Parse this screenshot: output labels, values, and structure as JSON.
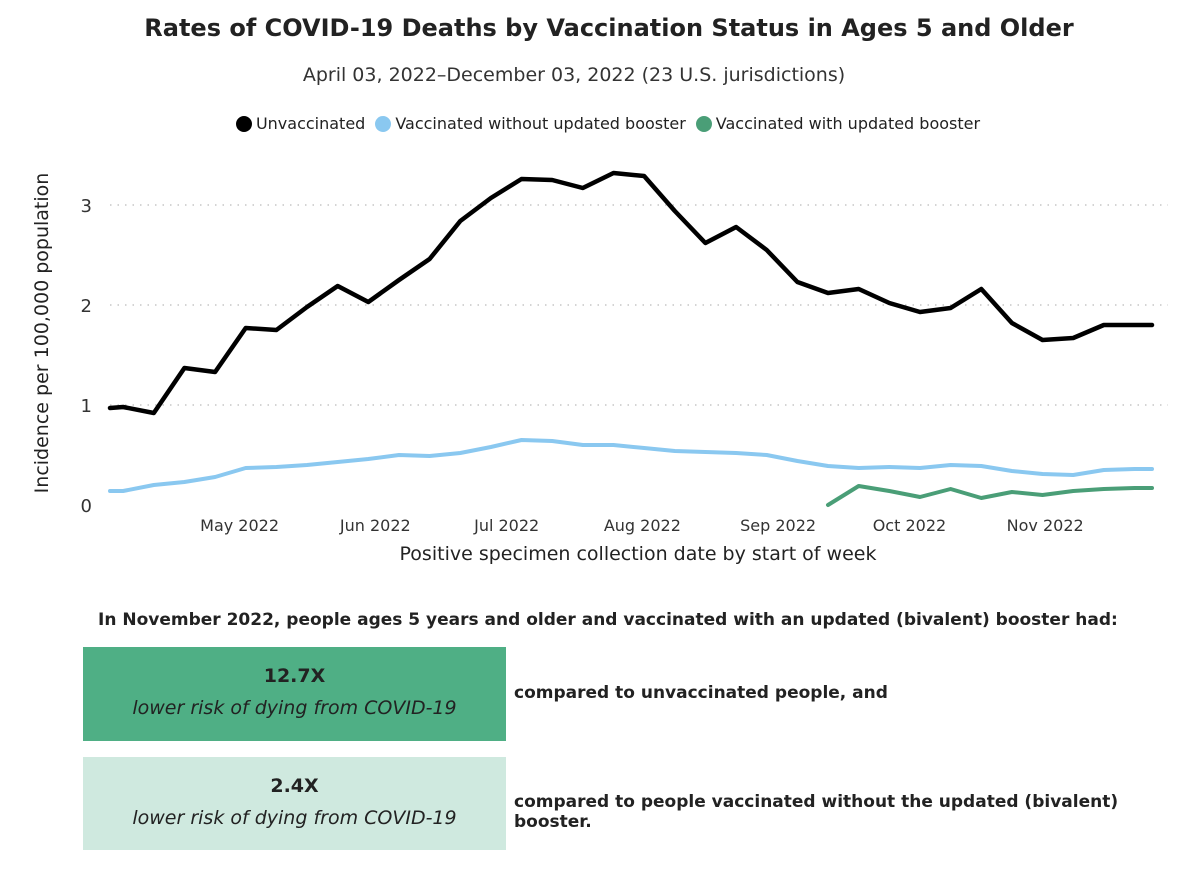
{
  "title": "Rates of COVID-19 Deaths by Vaccination Status in Ages 5 and Older",
  "subtitle": "April 03, 2022–December 03, 2022 (23 U.S. jurisdictions)",
  "chart_data": {
    "type": "line",
    "title": "Rates of COVID-19 Deaths by Vaccination Status in Ages 5 and Older",
    "subtitle": "April 03, 2022–December 03, 2022 (23 U.S. jurisdictions)",
    "xlabel": "Positive specimen collection date by start of week",
    "ylabel": "Incidence per 100,000 population",
    "ylim": [
      0,
      3.5
    ],
    "yticks": [
      0,
      1,
      2,
      3
    ],
    "xlim": [
      "2022-04-03",
      "2022-11-27"
    ],
    "xticks": [
      {
        "label": "May 2022",
        "date": "2022-05-01"
      },
      {
        "label": "Jun 2022",
        "date": "2022-06-01"
      },
      {
        "label": "Jul 2022",
        "date": "2022-07-01"
      },
      {
        "label": "Aug 2022",
        "date": "2022-08-01"
      },
      {
        "label": "Sep 2022",
        "date": "2022-09-01"
      },
      {
        "label": "Oct 2022",
        "date": "2022-10-01"
      },
      {
        "label": "Nov 2022",
        "date": "2022-11-01"
      }
    ],
    "grid": "horizontal dotted",
    "legend_position": "top",
    "x": [
      "2022-04-03",
      "2022-04-06",
      "2022-04-13",
      "2022-04-20",
      "2022-04-27",
      "2022-05-04",
      "2022-05-11",
      "2022-05-18",
      "2022-05-25",
      "2022-06-01",
      "2022-06-08",
      "2022-06-15",
      "2022-06-22",
      "2022-06-29",
      "2022-07-06",
      "2022-07-13",
      "2022-07-20",
      "2022-07-27",
      "2022-08-03",
      "2022-08-10",
      "2022-08-17",
      "2022-08-24",
      "2022-08-31",
      "2022-09-07",
      "2022-09-14",
      "2022-09-21",
      "2022-09-28",
      "2022-10-05",
      "2022-10-12",
      "2022-10-19",
      "2022-10-26",
      "2022-11-02",
      "2022-11-09",
      "2022-11-16",
      "2022-11-23",
      "2022-11-27"
    ],
    "series": [
      {
        "name": "Unvaccinated",
        "color": "#000000",
        "values": [
          0.97,
          0.98,
          0.92,
          1.37,
          1.33,
          1.77,
          1.75,
          1.98,
          2.19,
          2.03,
          2.25,
          2.46,
          2.84,
          3.07,
          3.26,
          3.25,
          3.17,
          3.32,
          3.29,
          2.94,
          2.62,
          2.78,
          2.55,
          2.23,
          2.12,
          2.16,
          2.02,
          1.93,
          1.97,
          2.16,
          1.82,
          1.65,
          1.67,
          1.8,
          1.8,
          1.8
        ]
      },
      {
        "name": "Vaccinated without updated booster",
        "color": "#8ac8f0",
        "values": [
          0.14,
          0.14,
          0.2,
          0.23,
          0.28,
          0.37,
          0.38,
          0.4,
          0.43,
          0.46,
          0.5,
          0.49,
          0.52,
          0.58,
          0.65,
          0.64,
          0.6,
          0.6,
          0.57,
          0.54,
          0.53,
          0.52,
          0.5,
          0.44,
          0.39,
          0.37,
          0.38,
          0.37,
          0.4,
          0.39,
          0.34,
          0.31,
          0.3,
          0.35,
          0.36,
          0.36
        ]
      },
      {
        "name": "Vaccinated with updated booster",
        "color": "#4a9e77",
        "values": [
          null,
          null,
          null,
          null,
          null,
          null,
          null,
          null,
          null,
          null,
          null,
          null,
          null,
          null,
          null,
          null,
          null,
          null,
          null,
          null,
          null,
          null,
          null,
          null,
          0.0,
          0.19,
          0.14,
          0.08,
          0.16,
          0.07,
          0.13,
          0.1,
          0.14,
          0.16,
          0.17,
          0.17
        ]
      }
    ]
  },
  "summary": {
    "heading": "In November 2022, people ages 5 years and older and vaccinated with an updated (bivalent) booster had:",
    "items": [
      {
        "value": "12.7X",
        "description": "lower risk of dying from COVID-19",
        "comparison": "compared to unvaccinated people, and",
        "color": "#4faf85"
      },
      {
        "value": "2.4X",
        "description": "lower risk of dying from COVID-19",
        "comparison": "compared to people vaccinated without the updated (bivalent) booster.",
        "color": "#cfe9df"
      }
    ]
  }
}
